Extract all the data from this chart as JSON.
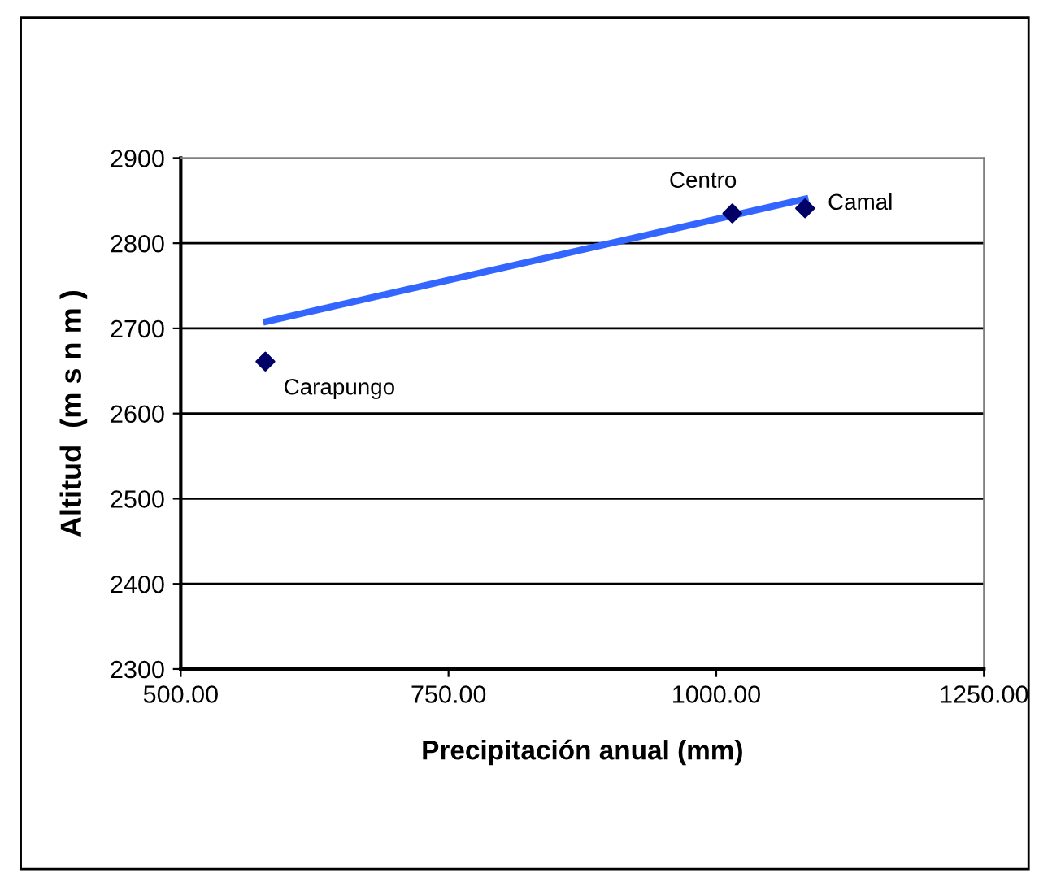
{
  "chart_data": {
    "type": "scatter",
    "xlabel": "Precipitación anual (mm)",
    "ylabel": "Altitud  (m s n m )",
    "xlim": [
      500,
      1250
    ],
    "xticks": [
      {
        "value": 500,
        "label": "500.00"
      },
      {
        "value": 750,
        "label": "750.00"
      },
      {
        "value": 1000,
        "label": "1000.00"
      },
      {
        "value": 1250,
        "label": "1250.00"
      }
    ],
    "ylim": [
      2300,
      2900
    ],
    "yticks": [
      2300,
      2400,
      2500,
      2600,
      2700,
      2800,
      2900
    ],
    "grid": "y",
    "legend": false,
    "series": [
      {
        "color": "#000066",
        "marker": "diamond",
        "x": [
          579,
          1015,
          1083
        ],
        "values": [
          2661,
          2835,
          2841
        ]
      },
      {
        "type": "line",
        "color": "#3366ff",
        "marker": "none",
        "line_style": "solid",
        "x": [
          580,
          1083
        ],
        "values": [
          2708,
          2852
        ]
      }
    ],
    "annotations": [
      {
        "text": "Carapungo",
        "x": 579,
        "y": 2661
      },
      {
        "text": "Centro",
        "x": 1015,
        "y": 2835
      },
      {
        "text": "Camal",
        "x": 1083,
        "y": 2841
      }
    ]
  }
}
